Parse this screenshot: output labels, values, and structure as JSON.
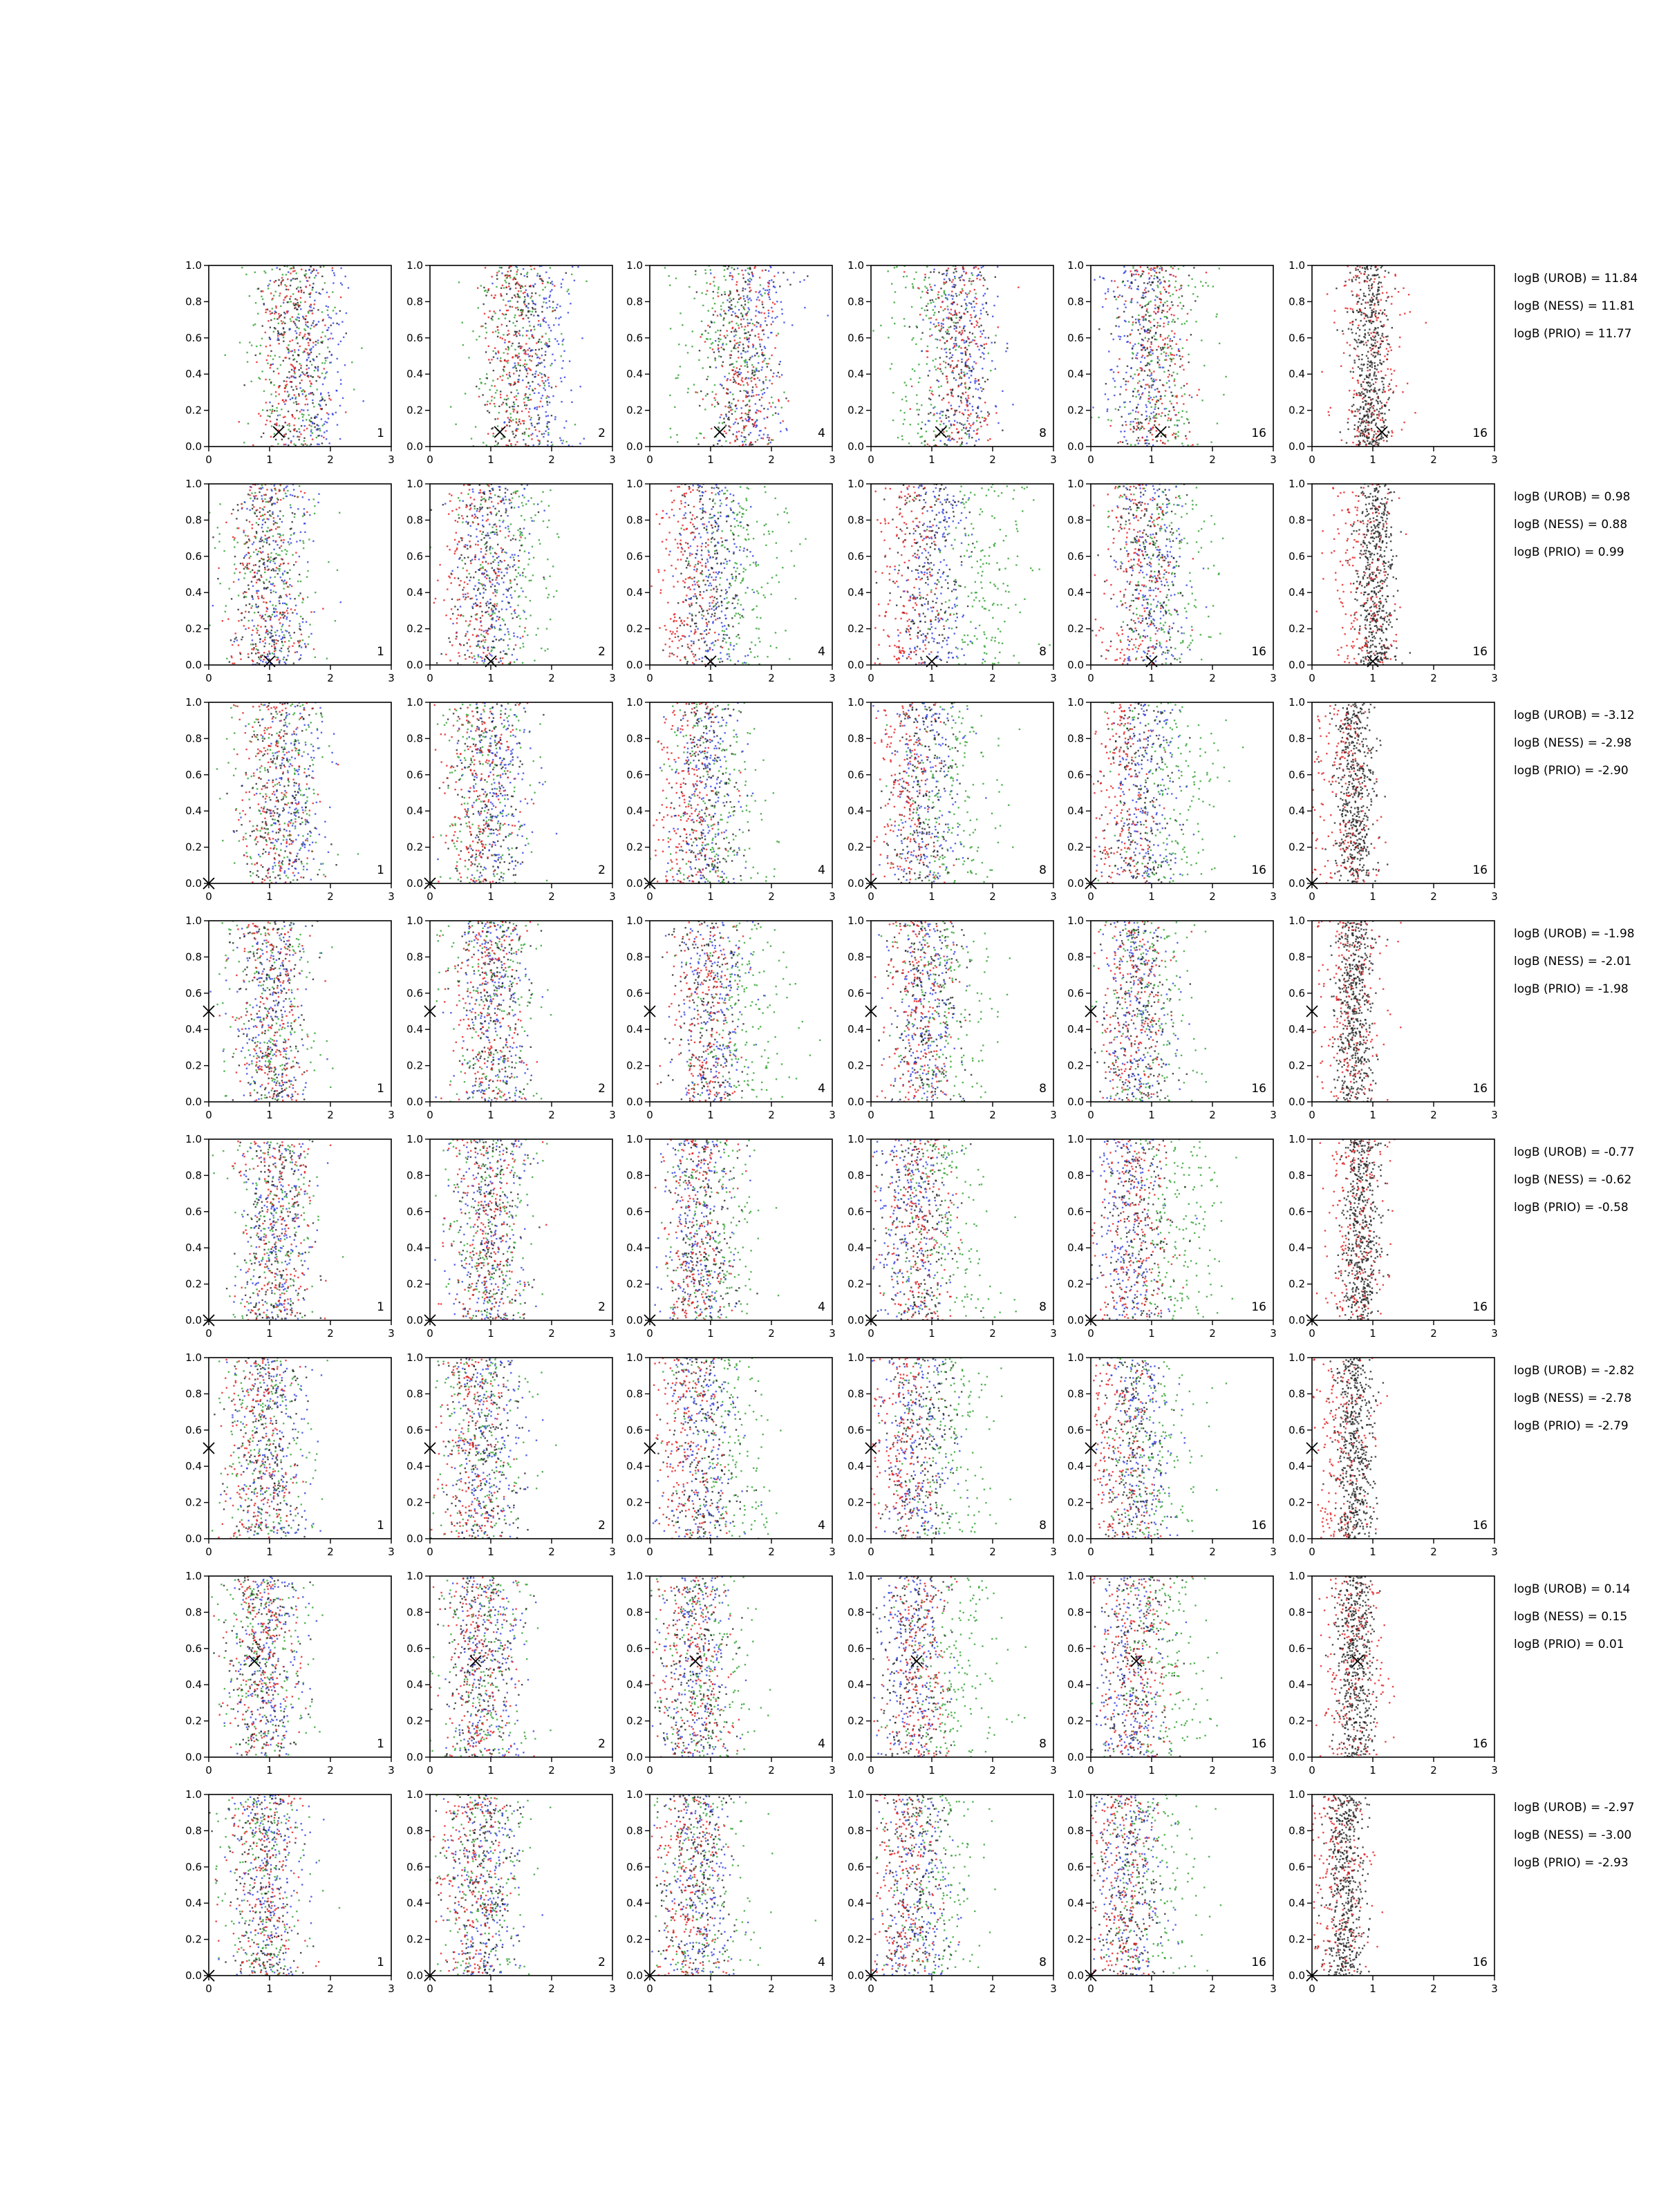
{
  "chart_data": {
    "type": "scatter",
    "layout": "grid of 8 rows x 6 panels",
    "xlim": [
      0,
      3
    ],
    "ylim": [
      0,
      1
    ],
    "xticks": [
      "0",
      "1",
      "2",
      "3"
    ],
    "yticks": [
      "0.0",
      "0.2",
      "0.4",
      "0.6",
      "0.8",
      "1.0"
    ],
    "grid": false,
    "panel_labels": [
      "1",
      "2",
      "4",
      "8",
      "16",
      "16"
    ],
    "colors": {
      "red": "#e41a1c",
      "blue": "#2f3fe0",
      "green": "#2ca02c",
      "black": "#222222",
      "axes": "#000000"
    },
    "rows": [
      {
        "marker": {
          "x": 1.15,
          "y": 0.08,
          "style": "x"
        },
        "evidence": [
          "logB (UROB) = 11.84",
          "logB (NESS) = 11.81",
          "logB (PRIO) = 11.77"
        ],
        "cloud_centers": {
          "red": [
            1.35,
            1.45,
            1.55,
            1.45,
            1.1,
            1.0
          ],
          "blue": [
            1.75,
            1.85,
            1.75,
            1.5,
            0.8,
            null
          ],
          "green": [
            1.35,
            1.35,
            1.2,
            1.0,
            1.2,
            null
          ],
          "black": [
            1.45,
            1.5,
            1.45,
            1.45,
            1.0,
            0.95
          ]
        }
      },
      {
        "marker": {
          "x": 1.0,
          "y": 0.02,
          "style": "x"
        },
        "evidence": [
          "logB (UROB) = 0.98",
          "logB (NESS) = 0.88",
          "logB (PRIO) = 0.99"
        ],
        "cloud_centers": {
          "red": [
            0.9,
            0.75,
            0.6,
            0.55,
            0.75,
            0.8
          ],
          "blue": [
            1.15,
            1.05,
            1.05,
            1.05,
            1.05,
            null
          ],
          "green": [
            1.05,
            1.3,
            1.5,
            1.75,
            1.25,
            null
          ],
          "black": [
            0.95,
            0.95,
            0.95,
            0.95,
            0.95,
            1.05
          ]
        }
      },
      {
        "marker": {
          "x": 0.0,
          "y": 0.0,
          "style": "x"
        },
        "evidence": [
          "logB (UROB) = -3.12",
          "logB (NESS) = -2.98",
          "logB (PRIO) = -2.90"
        ],
        "cloud_centers": {
          "red": [
            1.1,
            0.8,
            0.65,
            0.55,
            0.45,
            0.45
          ],
          "blue": [
            1.4,
            1.1,
            0.95,
            0.95,
            0.9,
            null
          ],
          "green": [
            1.15,
            0.9,
            1.05,
            1.3,
            1.3,
            null
          ],
          "black": [
            1.15,
            0.95,
            0.9,
            0.85,
            0.75,
            0.7
          ]
        }
      },
      {
        "marker": {
          "x": 0.0,
          "y": 0.5,
          "style": "x"
        },
        "evidence": [
          "logB (UROB) = -1.98",
          "logB (NESS) = -2.01",
          "logB (PRIO) = -1.98"
        ],
        "cloud_centers": {
          "red": [
            1.0,
            0.95,
            0.9,
            0.75,
            0.65,
            0.6
          ],
          "blue": [
            1.05,
            1.05,
            1.1,
            0.9,
            0.75,
            null
          ],
          "green": [
            1.0,
            1.1,
            1.5,
            1.2,
            0.95,
            null
          ],
          "black": [
            1.0,
            1.0,
            1.0,
            0.9,
            0.75,
            0.7
          ]
        }
      },
      {
        "marker": {
          "x": 0.0,
          "y": 0.0,
          "style": "x"
        },
        "evidence": [
          "logB (UROB) = -0.77",
          "logB (NESS) = -0.62",
          "logB (PRIO) = -0.58"
        ],
        "cloud_centers": {
          "red": [
            1.1,
            0.95,
            0.75,
            0.75,
            0.7,
            0.75
          ],
          "blue": [
            1.1,
            1.0,
            0.8,
            0.65,
            0.6,
            null
          ],
          "green": [
            1.05,
            1.05,
            1.0,
            1.2,
            1.4,
            null
          ],
          "black": [
            1.1,
            1.0,
            0.85,
            0.8,
            0.75,
            0.8
          ]
        }
      },
      {
        "marker": {
          "x": 0.0,
          "y": 0.5,
          "style": "x"
        },
        "evidence": [
          "logB (UROB) = -2.82",
          "logB (NESS) = -2.78",
          "logB (PRIO) = -2.79"
        ],
        "cloud_centers": {
          "red": [
            0.8,
            0.65,
            0.55,
            0.5,
            0.4,
            0.4
          ],
          "blue": [
            1.0,
            0.95,
            0.85,
            0.75,
            0.8,
            null
          ],
          "green": [
            0.95,
            0.85,
            1.25,
            1.2,
            1.0,
            null
          ],
          "black": [
            0.95,
            0.85,
            0.85,
            0.8,
            0.7,
            0.7
          ]
        }
      },
      {
        "marker": {
          "x": 0.75,
          "y": 0.53,
          "style": "x"
        },
        "evidence": [
          "logB (UROB) = 0.14",
          "logB (NESS) = 0.15",
          "logB (PRIO) = 0.01"
        ],
        "cloud_centers": {
          "red": [
            0.85,
            0.75,
            0.7,
            0.75,
            0.7,
            0.7
          ],
          "blue": [
            1.0,
            0.95,
            0.8,
            0.65,
            0.6,
            null
          ],
          "green": [
            0.9,
            0.8,
            0.9,
            1.3,
            1.2,
            null
          ],
          "black": [
            0.85,
            0.8,
            0.75,
            0.7,
            0.7,
            0.7
          ]
        }
      },
      {
        "marker": {
          "x": 0.0,
          "y": 0.0,
          "style": "x"
        },
        "evidence": [
          "logB (UROB) = -2.97",
          "logB (NESS) = -3.00",
          "logB (PRIO) = -2.93"
        ],
        "cloud_centers": {
          "red": [
            0.9,
            0.7,
            0.6,
            0.5,
            0.45,
            0.4
          ],
          "blue": [
            1.0,
            0.9,
            0.8,
            0.75,
            0.65,
            null
          ],
          "green": [
            0.85,
            0.8,
            0.9,
            1.1,
            1.0,
            null
          ],
          "black": [
            0.9,
            0.85,
            0.75,
            0.7,
            0.6,
            0.55
          ]
        }
      }
    ]
  }
}
